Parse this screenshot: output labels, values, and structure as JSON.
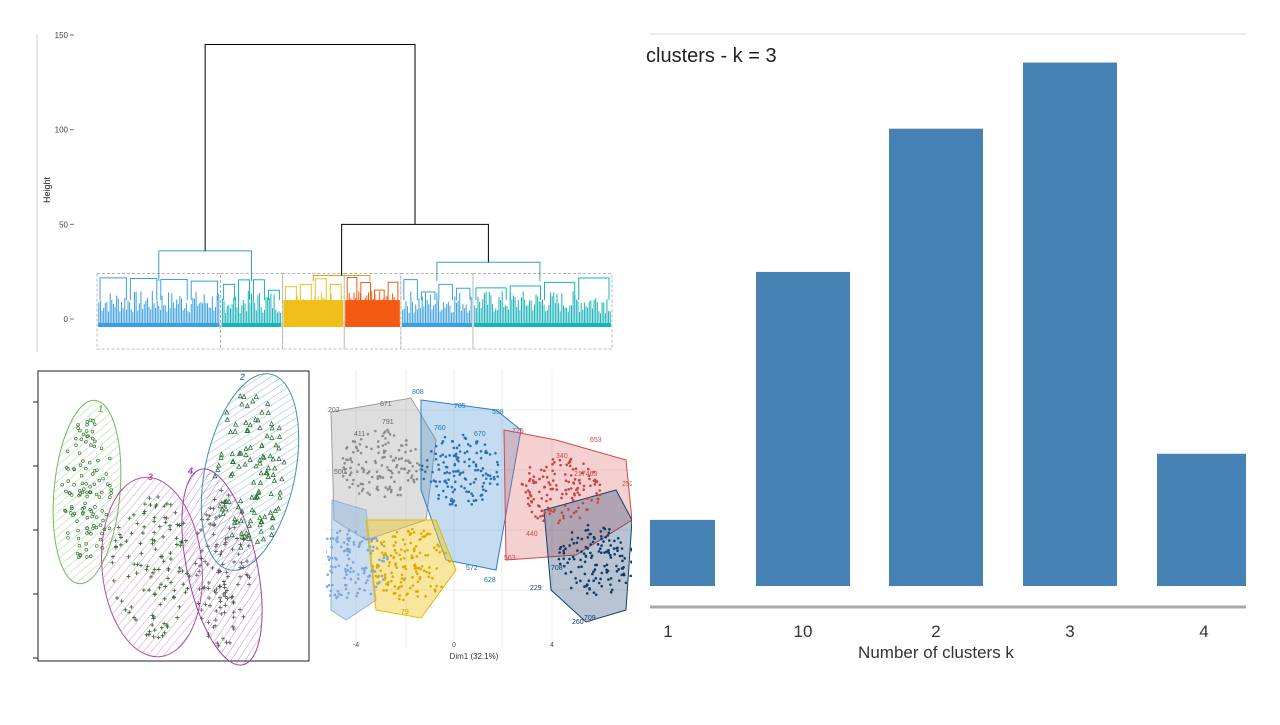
{
  "dendrogram": {
    "ylabel": "Height",
    "yticks": [
      0,
      50,
      100,
      150
    ],
    "ymax": 150,
    "leaf_groups": [
      {
        "color": "#3aa0e0",
        "x0": 0.0,
        "x1": 0.24
      },
      {
        "color": "#19b3b8",
        "x0": 0.24,
        "x1": 0.36
      },
      {
        "color": "#f0bf1a",
        "x0": 0.36,
        "x1": 0.48
      },
      {
        "color": "#f45a12",
        "x0": 0.48,
        "x1": 0.59
      },
      {
        "color": "#3aa0e0",
        "x0": 0.59,
        "x1": 0.73
      },
      {
        "color": "#19b3b8",
        "x0": 0.73,
        "x1": 1.0
      }
    ],
    "merges": [
      {
        "color": "#3a9ec4",
        "left": 0.12,
        "right": 0.3,
        "h": 36
      },
      {
        "color": "#e0a020",
        "left": 0.42,
        "right": 0.53,
        "h": 23
      },
      {
        "color": "#3a9ec4",
        "left": 0.66,
        "right": 0.86,
        "h": 30
      },
      {
        "color": "#000000",
        "left": 0.475,
        "right": 0.76,
        "h": 50
      },
      {
        "color": "#000000",
        "left": 0.21,
        "right": 0.6175,
        "h": 145
      }
    ]
  },
  "ellipse_plot": {
    "cluster_labels": [
      "1",
      "2",
      "3",
      "4"
    ],
    "colors": {
      "1": "#6fba5c",
      "2": "#3f8fb5",
      "3": "#b04fa0",
      "4": "#9a3fb0"
    }
  },
  "cluster_plot": {
    "xlabel": "Dim1 (32.1%)",
    "xticks": [
      "-4",
      "0",
      "4"
    ],
    "point_labels": [
      {
        "t": "808",
        "c": "#1f77b4"
      },
      {
        "t": "785",
        "c": "#1f77b4"
      },
      {
        "t": "598",
        "c": "#1f77b4"
      },
      {
        "t": "202",
        "c": "#666666"
      },
      {
        "t": "671",
        "c": "#666666"
      },
      {
        "t": "791",
        "c": "#666666"
      },
      {
        "t": "411",
        "c": "#666666"
      },
      {
        "t": "760",
        "c": "#1f77b4"
      },
      {
        "t": "670",
        "c": "#1f77b4"
      },
      {
        "t": "725",
        "c": "#d04a48"
      },
      {
        "t": "653",
        "c": "#d04a48"
      },
      {
        "t": "500",
        "c": "#666666"
      },
      {
        "t": "340",
        "c": "#d04a48"
      },
      {
        "t": "217463",
        "c": "#d04a48"
      },
      {
        "t": "252",
        "c": "#d04a48"
      },
      {
        "t": "572",
        "c": "#1f77b4"
      },
      {
        "t": "628",
        "c": "#1f77b4"
      },
      {
        "t": "229",
        "c": "#123f6a"
      },
      {
        "t": "708",
        "c": "#123f6a"
      },
      {
        "t": "260",
        "c": "#123f6a"
      },
      {
        "t": "709",
        "c": "#123f6a"
      },
      {
        "t": "79",
        "c": "#c8a000"
      },
      {
        "t": "440",
        "c": "#d04a48"
      },
      {
        "t": "563",
        "c": "#d04a48"
      }
    ]
  },
  "chart_data": {
    "type": "bar",
    "title": "clusters - k = 3",
    "xlabel": "Number of clusters k",
    "ylabel": "",
    "categories": [
      "1",
      "10",
      "2",
      "3",
      "4"
    ],
    "values": [
      12,
      57,
      83,
      95,
      24
    ],
    "ylim": [
      0,
      100
    ],
    "bar_color": "#4682b4",
    "grid": false
  }
}
